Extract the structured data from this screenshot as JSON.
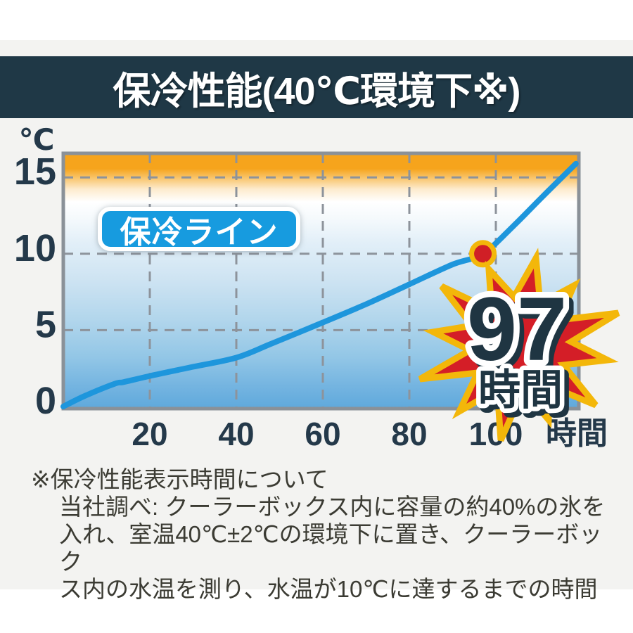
{
  "header": {
    "title": "保冷性能(40℃環境下※)"
  },
  "chart": {
    "line_label": "保冷ライン",
    "badge": {
      "value": "97",
      "unit": "時間"
    }
  },
  "chart_data": {
    "type": "line",
    "title": "保冷性能(40℃環境下※)",
    "xlabel": "時間",
    "ylabel": "℃",
    "xlim": [
      0,
      119
    ],
    "ylim": [
      0,
      16.6
    ],
    "x_ticks": [
      20,
      40,
      60,
      80,
      100
    ],
    "y_ticks": [
      0,
      5,
      10,
      15
    ],
    "grid": true,
    "series": [
      {
        "name": "保冷ライン",
        "points": [
          [
            0,
            0
          ],
          [
            5,
            0.7
          ],
          [
            12,
            1.5
          ],
          [
            14,
            1.6
          ],
          [
            20,
            2.0
          ],
          [
            30,
            2.6
          ],
          [
            40,
            3.2
          ],
          [
            48,
            4.1
          ],
          [
            60,
            5.5
          ],
          [
            70,
            6.7
          ],
          [
            80,
            8.0
          ],
          [
            90,
            9.3
          ],
          [
            97,
            10.0
          ],
          [
            104,
            11.8
          ],
          [
            111,
            13.8
          ],
          [
            118.5,
            15.9
          ]
        ]
      }
    ],
    "marker": {
      "x": 97,
      "y": 10,
      "meaning": "水温10℃到達点"
    },
    "annotation": {
      "value": "97",
      "unit": "時間"
    }
  },
  "footnote": {
    "lines": [
      "※保冷性能表示時間について",
      "当社調べ: クーラーボックス内に容量の約40%の氷を",
      "入れ、室温40℃±2℃の環境下に置き、クーラーボック",
      "ス内の水温を測り、水温が10℃に達するまでの時間"
    ]
  },
  "colors": {
    "header_bg": "#1f3846",
    "badge_blue": "#179bdf",
    "line_blue": "#1e96dc",
    "marker_red": "#d01f26",
    "gold": "#f3b70a",
    "burst_red": "#d41e27",
    "navy_text": "#24394a",
    "grid_gray": "#8d939b",
    "panel_bg": "#f3f3f1",
    "gradient_top_orange": "#f6a41c",
    "gradient_bottom_blue": "#5fa9dc"
  }
}
